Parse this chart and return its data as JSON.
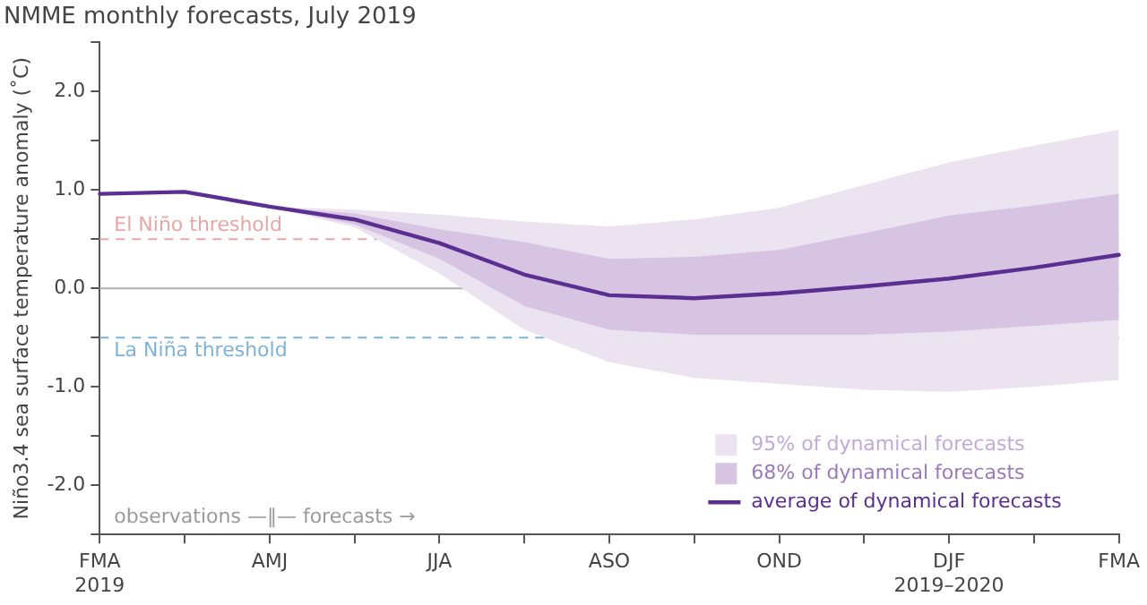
{
  "chart_data": {
    "type": "line",
    "title": "NMME monthly forecasts, July 2019",
    "ylabel": "Niño3.4 sea surface temperature anomaly (˚C)",
    "categories": [
      "FMA\n2019",
      null,
      "AMJ",
      null,
      "JJA",
      null,
      "ASO",
      null,
      "OND",
      null,
      "DJF\n2019–2020",
      null,
      "FMA"
    ],
    "series": [
      {
        "name": "95% of dynamical forecasts",
        "type": "area",
        "color": "#ece3f1",
        "values": [
          null,
          null,
          null,
          null,
          null,
          null,
          null,
          null,
          null,
          null,
          null,
          null,
          null
        ],
        "lower": [
          null,
          null,
          0.83,
          0.62,
          0.15,
          -0.42,
          -0.75,
          -0.91,
          -0.97,
          -1.03,
          -1.05,
          -1.0,
          -0.93
        ],
        "upper": [
          null,
          null,
          0.83,
          0.8,
          0.75,
          0.68,
          0.63,
          0.7,
          0.82,
          1.05,
          1.28,
          1.45,
          1.61
        ]
      },
      {
        "name": "68% of dynamical forecasts",
        "type": "area",
        "color": "#d6c4e2",
        "values": [
          null,
          null,
          null,
          null,
          null,
          null,
          null,
          null,
          null,
          null,
          null,
          null,
          null
        ],
        "lower": [
          null,
          null,
          0.83,
          0.65,
          0.3,
          -0.18,
          -0.42,
          -0.47,
          -0.47,
          -0.47,
          -0.44,
          -0.38,
          -0.32
        ],
        "upper": [
          null,
          null,
          0.83,
          0.76,
          0.6,
          0.47,
          0.3,
          0.32,
          0.39,
          0.56,
          0.74,
          0.84,
          0.96
        ]
      },
      {
        "name": "average of dynamical forecasts",
        "color": "#5b2f91",
        "values": [
          0.96,
          0.98,
          0.83,
          0.7,
          0.46,
          0.14,
          -0.07,
          -0.1,
          -0.05,
          0.02,
          0.1,
          0.21,
          0.34
        ]
      }
    ],
    "ylim": [
      -2.5,
      2.5
    ],
    "yticks": [
      {
        "value": -2.5,
        "label": null
      },
      {
        "value": -2,
        "label": "-2.0"
      },
      {
        "value": -1.5,
        "label": null
      },
      {
        "value": -1,
        "label": "-1.0"
      },
      {
        "value": -0.5,
        "label": null
      },
      {
        "value": 0,
        "label": "0.0"
      },
      {
        "value": 0.5,
        "label": null
      },
      {
        "value": 1,
        "label": "1.0"
      },
      {
        "value": 1.5,
        "label": null
      },
      {
        "value": 2,
        "label": "2.0"
      },
      {
        "value": 2.5,
        "label": null
      }
    ],
    "ref_lines": [
      {
        "axis": "y",
        "value": 0.5,
        "label": "El Niño threshold",
        "color": "#e8a6a6",
        "line_style": "dashed"
      },
      {
        "axis": "y",
        "value": 0,
        "label": null,
        "color": "#b0b0b0",
        "line_style": "solid"
      },
      {
        "axis": "y",
        "value": -0.5,
        "label": "La Niña threshold",
        "color": "#7fb3d5",
        "line_style": "dashed"
      }
    ],
    "annotations": [
      "observations —‖— forecasts →"
    ],
    "grid": false,
    "legend": "bottom right",
    "marker": "none",
    "line_style": "solid"
  }
}
